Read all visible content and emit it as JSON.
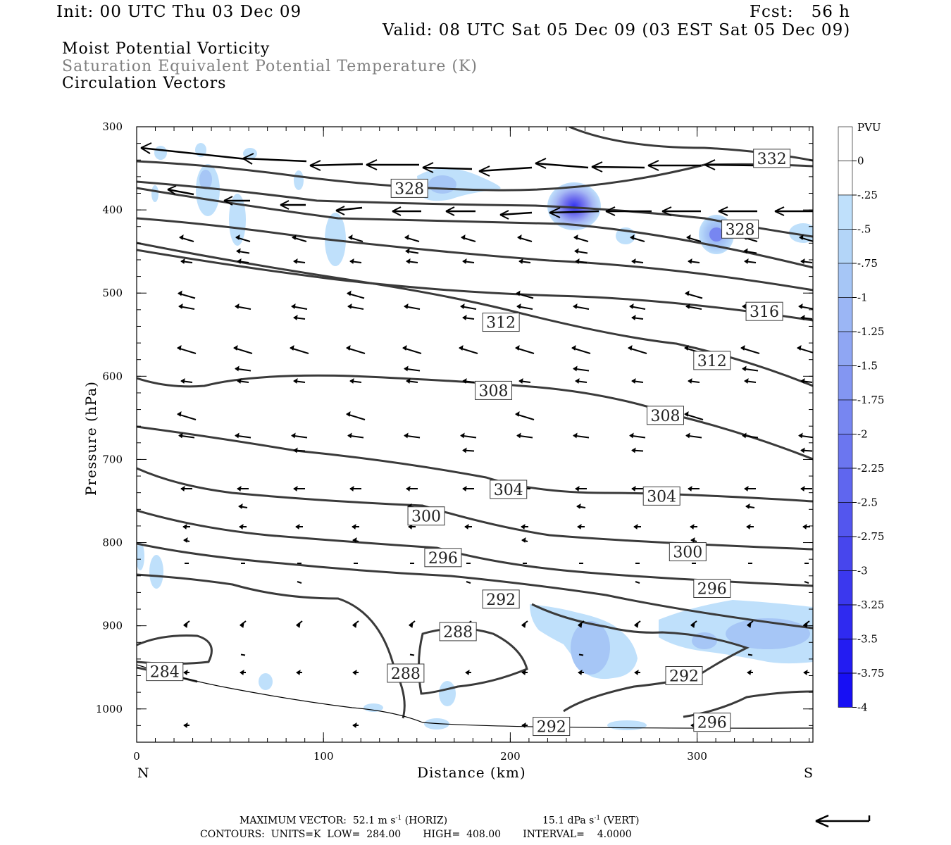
{
  "header": {
    "init": "Init: 00 UTC Thu 03 Dec 09",
    "fcst": "Fcst:   56 h",
    "valid": "Valid: 08 UTC Sat 05 Dec 09 (03 EST Sat 05 Dec 09)",
    "field1": "Moist Potential Vorticity",
    "field2": "Saturation Equivalent Potential Temperature (K)",
    "field3": "Circulation Vectors"
  },
  "footer": {
    "max_vector_prefix": "MAXIMUM VECTOR:  52.1 m s",
    "horiz_suffix": " (HORIZ)",
    "vert_prefix": "15.1 dPa s",
    "vert_suffix": " (VERT)",
    "exp": "-1",
    "contours": "CONTOURS:  UNITS=K  LOW=  284.00       HIGH=  408.00       INTERVAL=    4.0000"
  },
  "colors": {
    "contour": "#3a3a3a",
    "pv_light": "#bfe0fb",
    "pv_mid": "#a6b8f4",
    "pv_dark": "#6f6fee",
    "pv_core": "#3232f0"
  },
  "chart_data": {
    "type": "cross-section",
    "xlabel": "Distance (km)",
    "ylabel": "Pressure (hPa)",
    "x_ticks": [
      0,
      100,
      200,
      300
    ],
    "x_tick_labels": [
      "0",
      "100",
      "200",
      "300"
    ],
    "y_ticks": [
      300,
      400,
      500,
      600,
      700,
      800,
      900,
      1000
    ],
    "y_tick_labels": [
      "300",
      "400",
      "500",
      "600",
      "700",
      "800",
      "900",
      "1000"
    ],
    "xlim": [
      0,
      362
    ],
    "ylim": [
      300,
      1040
    ],
    "left_end_label": "N",
    "right_end_label": "S",
    "colorbar": {
      "unit": "PVU",
      "labels": [
        "0",
        "-.25",
        "-.5",
        "-.75",
        "-1",
        "-1.25",
        "-1.5",
        "-1.75",
        "-2",
        "-2.25",
        "-2.5",
        "-2.75",
        "-3",
        "-3.25",
        "-3.5",
        "-3.75",
        "-4"
      ],
      "colors": [
        "#ffffff",
        "#ffffff",
        "#bfe0fb",
        "#b3d5f8",
        "#a6c6f6",
        "#9bb6f5",
        "#8fa6f3",
        "#8396f2",
        "#7786f1",
        "#6b76f0",
        "#5f66ef",
        "#5356ee",
        "#4746ed",
        "#3b38ee",
        "#2f2af0",
        "#231cf2",
        "#170ff4"
      ]
    },
    "contour_labels": [
      {
        "text": "332",
        "x": 340,
        "p": 338
      },
      {
        "text": "328",
        "x": 146,
        "p": 374
      },
      {
        "text": "328",
        "x": 323,
        "p": 423
      },
      {
        "text": "316",
        "x": 336,
        "p": 522
      },
      {
        "text": "312",
        "x": 195,
        "p": 535
      },
      {
        "text": "312",
        "x": 308,
        "p": 581
      },
      {
        "text": "308",
        "x": 191,
        "p": 617
      },
      {
        "text": "308",
        "x": 283,
        "p": 647
      },
      {
        "text": "304",
        "x": 199,
        "p": 736
      },
      {
        "text": "304",
        "x": 281,
        "p": 744
      },
      {
        "text": "300",
        "x": 155,
        "p": 768
      },
      {
        "text": "300",
        "x": 295,
        "p": 811
      },
      {
        "text": "296",
        "x": 164,
        "p": 818
      },
      {
        "text": "296",
        "x": 308,
        "p": 855
      },
      {
        "text": "292",
        "x": 195,
        "p": 868
      },
      {
        "text": "292",
        "x": 293,
        "p": 960
      },
      {
        "text": "292",
        "x": 222,
        "p": 1021
      },
      {
        "text": "288",
        "x": 172,
        "p": 907
      },
      {
        "text": "288",
        "x": 144,
        "p": 957
      },
      {
        "text": "296",
        "x": 308,
        "p": 1016
      },
      {
        "text": "284",
        "x": 15,
        "p": 955
      }
    ]
  }
}
